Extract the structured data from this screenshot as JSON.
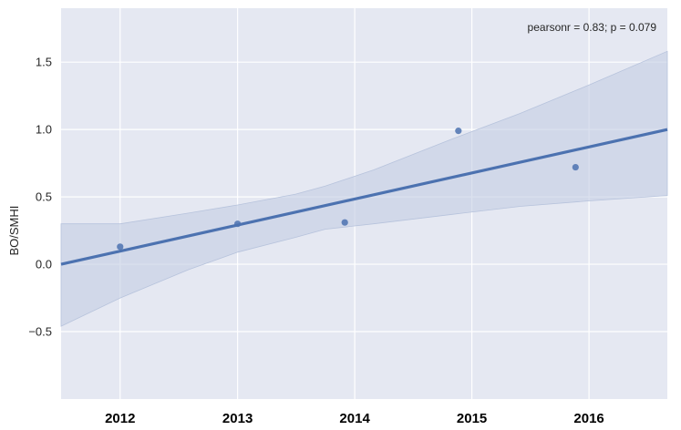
{
  "chart_data": {
    "type": "scatter",
    "title": "",
    "xlabel": "",
    "ylabel": "BO/SMHI",
    "xlim": [
      "2011-07-01",
      "2016-09-01"
    ],
    "ylim": [
      -1.0,
      1.9
    ],
    "yticks": [
      "−0.5",
      "0.0",
      "0.5",
      "1.0",
      "1.5"
    ],
    "ytick_values": [
      -0.5,
      0.0,
      0.5,
      1.0,
      1.5
    ],
    "xtick_labels": [
      "2012",
      "2013",
      "2014",
      "2015",
      "2016"
    ],
    "xtick_dates": [
      "2012-01-01",
      "2013-01-01",
      "2014-01-01",
      "2015-01-01",
      "2016-01-01"
    ],
    "points": [
      {
        "x": "2012-01-01",
        "y": 0.13
      },
      {
        "x": "2013-01-01",
        "y": 0.3
      },
      {
        "x": "2013-12-01",
        "y": 0.31
      },
      {
        "x": "2014-11-20",
        "y": 0.99
      },
      {
        "x": "2015-11-20",
        "y": 0.72
      }
    ],
    "regression_line": [
      {
        "x": "2011-07-01",
        "y": 0.0
      },
      {
        "x": "2016-09-01",
        "y": 1.0
      }
    ],
    "confidence_band": {
      "x": [
        "2011-07-01",
        "2012-01-01",
        "2012-08-01",
        "2013-01-01",
        "2013-07-01",
        "2013-10-01",
        "2014-03-01",
        "2014-11-01",
        "2015-06-01",
        "2016-01-01",
        "2016-09-01"
      ],
      "upper": [
        0.3,
        0.3,
        0.38,
        0.44,
        0.52,
        0.58,
        0.7,
        0.93,
        1.12,
        1.33,
        1.58
      ],
      "lower": [
        -0.46,
        -0.25,
        -0.04,
        0.09,
        0.2,
        0.26,
        0.3,
        0.37,
        0.43,
        0.47,
        0.51
      ]
    },
    "annotation": "pearsonr = 0.83; p = 0.079",
    "annotation_position": "top-right",
    "grid": true,
    "colors": {
      "background": "#e5e8f2",
      "grid": "#ffffff",
      "line": "#4c72b0",
      "points": "#4c72b0",
      "band": "#c3cde3"
    }
  }
}
